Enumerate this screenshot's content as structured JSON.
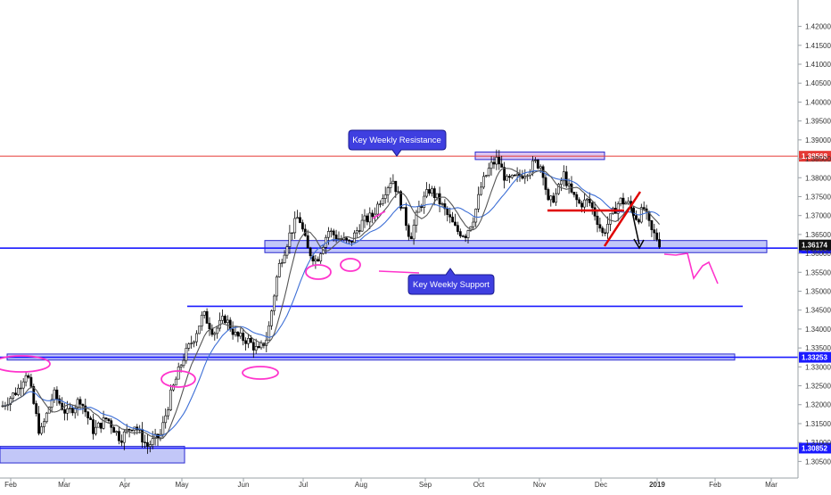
{
  "chart_data": {
    "type": "candlestick",
    "y_axis": {
      "ticks": [
        "1.42000",
        "1.41500",
        "1.41000",
        "1.40500",
        "1.40000",
        "1.39500",
        "1.39000",
        "1.38500",
        "1.38000",
        "1.37500",
        "1.37000",
        "1.36500",
        "1.36000",
        "1.35500",
        "1.35000",
        "1.34500",
        "1.34000",
        "1.33500",
        "1.33000",
        "1.32500",
        "1.32000",
        "1.31500",
        "1.31000",
        "1.30500"
      ],
      "ylim": [
        1.3032,
        1.4225
      ]
    },
    "x_axis": {
      "ticks": [
        "Feb",
        "Mar",
        "Apr",
        "May",
        "Jun",
        "Jul",
        "Aug",
        "Sep",
        "Oct",
        "Nov",
        "Dec",
        "2019",
        "Feb",
        "Mar"
      ]
    },
    "horizontal_lines": [
      {
        "value": 1.38568,
        "color": "#e53935",
        "price_label": "1.38568"
      },
      {
        "value": 1.36138,
        "color": "#1a1aff",
        "price_label": "1.36138"
      },
      {
        "value": 1.346,
        "color": "#1a1aff"
      },
      {
        "value": 1.33253,
        "color": "#1a1aff",
        "price_label": "1.33253"
      },
      {
        "value": 1.30852,
        "color": "#1a1aff",
        "price_label": "1.30852"
      }
    ],
    "current_price": {
      "value": 1.36174,
      "label": "1.36174"
    },
    "zones": [
      {
        "name": "resistance-zone",
        "x_from": "Oct 1",
        "x_to": "Nov 22",
        "y_from": 1.3848,
        "y_to": 1.3868
      },
      {
        "name": "weekly-support-zone",
        "x_from": "Jun 22",
        "x_to": "Feb 26",
        "y_from": 1.3602,
        "y_to": 1.3634
      },
      {
        "name": "mid-support-zone",
        "x_from": "Jan 22",
        "x_to": "Feb 12",
        "y_from": 1.3318,
        "y_to": 1.3334
      },
      {
        "name": "bottom-zone",
        "x_from": "Jan 22",
        "x_to": "May 1",
        "y_from": 1.3046,
        "y_to": 1.309
      }
    ],
    "annotations": {
      "resistance": "Key Weekly Resistance",
      "support": "Key Weekly Support"
    },
    "moving_averages": [
      {
        "color": "#3d6fd6"
      },
      {
        "color": "#555555"
      }
    ],
    "colors": {
      "up": "#ffffff",
      "down": "#000000",
      "marker": "#ff33cc",
      "callout": "#3f3fe0"
    }
  }
}
